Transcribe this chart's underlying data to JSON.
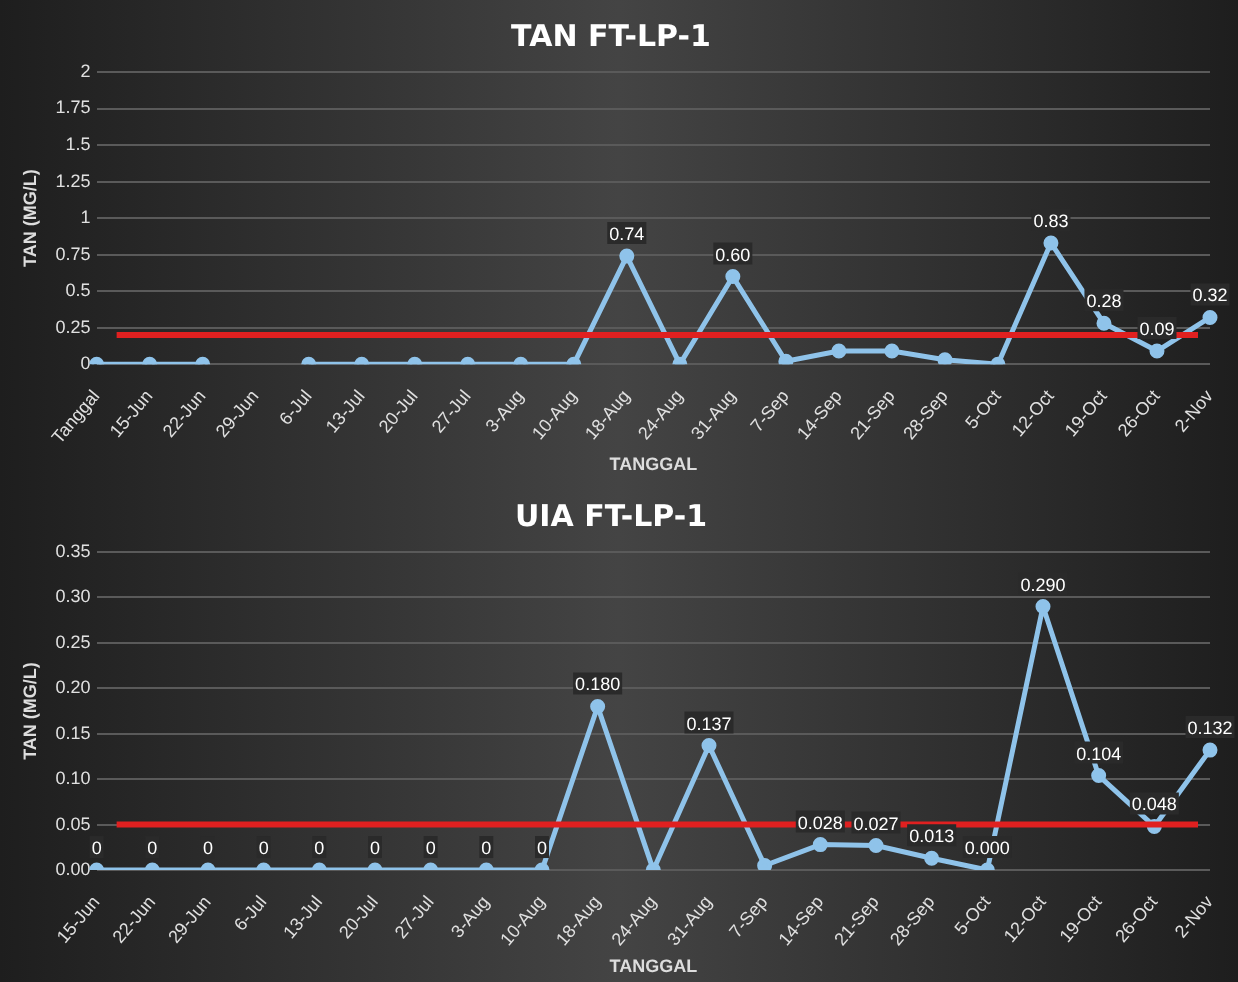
{
  "chart_data": [
    {
      "type": "line",
      "title": "TAN FT-LP-1",
      "xlabel": "TANGGAL",
      "ylabel": "TAN (MG/L)",
      "categories": [
        "Tanggal",
        "15-Jun",
        "22-Jun",
        "29-Jun",
        "6-Jul",
        "13-Jul",
        "20-Jul",
        "27-Jul",
        "3-Aug",
        "10-Aug",
        "18-Aug",
        "24-Aug",
        "31-Aug",
        "7-Sep",
        "14-Sep",
        "21-Sep",
        "28-Sep",
        "5-Oct",
        "12-Oct",
        "19-Oct",
        "26-Oct",
        "2-Nov"
      ],
      "series": [
        {
          "color": "#8fc3ea",
          "values": [
            0,
            0,
            0,
            null,
            0,
            0,
            0,
            0,
            0,
            0,
            0.74,
            0,
            0.6,
            0.02,
            0.09,
            0.09,
            0.03,
            0,
            0.83,
            0.28,
            0.09,
            0.32
          ],
          "value_labels": [
            null,
            null,
            null,
            null,
            null,
            null,
            null,
            null,
            null,
            null,
            "0.74",
            null,
            "0.60",
            null,
            null,
            null,
            null,
            null,
            "0.83",
            "0.28",
            "0.09",
            "0.32"
          ]
        }
      ],
      "ylim": [
        0,
        2
      ],
      "yticks": [
        0,
        0.25,
        0.5,
        0.75,
        1,
        1.25,
        1.5,
        1.75,
        2
      ],
      "grid": "y",
      "marker": "circle",
      "legend": false,
      "ref_lines": [
        {
          "axis": "y",
          "value": 0.2,
          "color": "#e02020"
        }
      ]
    },
    {
      "type": "line",
      "title": "UIA FT-LP-1",
      "xlabel": "TANGGAL",
      "ylabel": "TAN (MG/L)",
      "categories": [
        "15-Jun",
        "22-Jun",
        "29-Jun",
        "6-Jul",
        "13-Jul",
        "20-Jul",
        "27-Jul",
        "3-Aug",
        "10-Aug",
        "18-Aug",
        "24-Aug",
        "31-Aug",
        "7-Sep",
        "14-Sep",
        "21-Sep",
        "28-Sep",
        "5-Oct",
        "12-Oct",
        "19-Oct",
        "26-Oct",
        "2-Nov"
      ],
      "series": [
        {
          "color": "#8fc3ea",
          "values": [
            0,
            0,
            0,
            0,
            0,
            0,
            0,
            0,
            0,
            0.18,
            0,
            0.137,
            0.005,
            0.028,
            0.027,
            0.013,
            0,
            0.29,
            0.104,
            0.048,
            0.132
          ],
          "value_labels": [
            "0",
            "0",
            "0",
            "0",
            "0",
            "0",
            "0",
            "0",
            "0",
            "0.180",
            null,
            "0.137",
            null,
            "0.028",
            "0.027",
            "0.013",
            "0.000",
            "0.290",
            "0.104",
            "0.048",
            "0.132"
          ]
        }
      ],
      "ylim": [
        0,
        0.35
      ],
      "yticks": [
        {
          "value": 0,
          "label": "0.00"
        },
        {
          "value": 0.05,
          "label": "0.05"
        },
        {
          "value": 0.1,
          "label": "0.10"
        },
        {
          "value": 0.15,
          "label": "0.15"
        },
        {
          "value": 0.2,
          "label": "0.20"
        },
        {
          "value": 0.25,
          "label": "0.25"
        },
        {
          "value": 0.3,
          "label": "0.30"
        },
        {
          "value": 0.35,
          "label": "0.35"
        }
      ],
      "grid": "y",
      "marker": "circle",
      "legend": false,
      "ref_lines": [
        {
          "axis": "y",
          "value": 0.05,
          "color": "#e02020"
        }
      ]
    }
  ]
}
